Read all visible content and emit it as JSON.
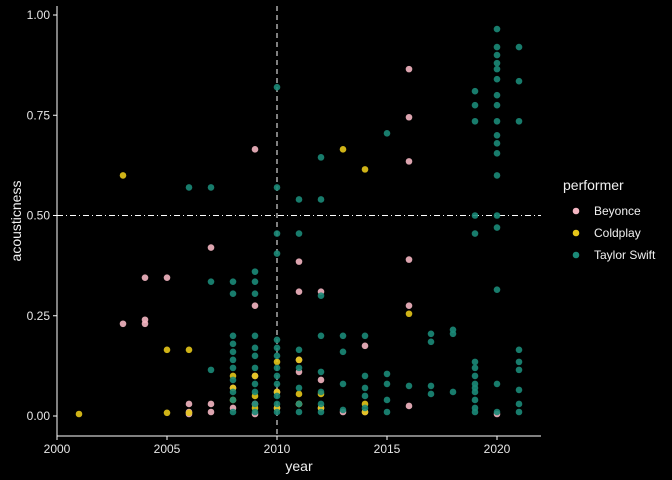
{
  "chart_data": {
    "type": "scatter",
    "xlabel": "year",
    "ylabel": "acousticness",
    "xlim": [
      2000,
      2022
    ],
    "ylim": [
      -0.04,
      1.0
    ],
    "x_ticks": [
      2000,
      2005,
      2010,
      2015,
      2020
    ],
    "y_ticks": [
      0.0,
      0.25,
      0.5,
      0.75,
      1.0
    ],
    "x_tick_labels": [
      "2000",
      "2005",
      "2010",
      "2015",
      "2020"
    ],
    "y_tick_labels": [
      "0.00",
      "0.25",
      "0.50",
      "0.75",
      "1.00"
    ],
    "grid": false,
    "reference_lines": [
      {
        "orientation": "vertical",
        "value": 2010,
        "style": "dashed"
      },
      {
        "orientation": "horizontal",
        "value": 0.5,
        "style": "dotdash"
      }
    ],
    "legend": {
      "title": "performer",
      "position": "right"
    },
    "series": [
      {
        "name": "Beyonce",
        "color": "#f4b6c2",
        "points": [
          [
            2003,
            0.23
          ],
          [
            2004,
            0.345
          ],
          [
            2004,
            0.24
          ],
          [
            2004,
            0.23
          ],
          [
            2005,
            0.345
          ],
          [
            2006,
            0.03
          ],
          [
            2006,
            0.01
          ],
          [
            2006,
            0.005
          ],
          [
            2007,
            0.42
          ],
          [
            2007,
            0.03
          ],
          [
            2007,
            0.01
          ],
          [
            2008,
            0.07
          ],
          [
            2008,
            0.02
          ],
          [
            2009,
            0.665
          ],
          [
            2009,
            0.275
          ],
          [
            2009,
            0.1
          ],
          [
            2009,
            0.03
          ],
          [
            2009,
            0.005
          ],
          [
            2010,
            0.06
          ],
          [
            2010,
            0.02
          ],
          [
            2011,
            0.385
          ],
          [
            2011,
            0.31
          ],
          [
            2011,
            0.14
          ],
          [
            2011,
            0.11
          ],
          [
            2011,
            0.03
          ],
          [
            2012,
            0.31
          ],
          [
            2012,
            0.09
          ],
          [
            2012,
            0.02
          ],
          [
            2013,
            0.01
          ],
          [
            2014,
            0.175
          ],
          [
            2014,
            0.01
          ],
          [
            2016,
            0.865
          ],
          [
            2016,
            0.745
          ],
          [
            2016,
            0.635
          ],
          [
            2016,
            0.39
          ],
          [
            2016,
            0.275
          ],
          [
            2016,
            0.025
          ],
          [
            2020,
            0.005
          ]
        ]
      },
      {
        "name": "Coldplay",
        "color": "#e6c619",
        "points": [
          [
            2001,
            0.005
          ],
          [
            2003,
            0.6
          ],
          [
            2005,
            0.165
          ],
          [
            2005,
            0.008
          ],
          [
            2006,
            0.165
          ],
          [
            2006,
            0.008
          ],
          [
            2008,
            0.1
          ],
          [
            2008,
            0.07
          ],
          [
            2008,
            0.04
          ],
          [
            2009,
            0.1
          ],
          [
            2009,
            0.05
          ],
          [
            2009,
            0.02
          ],
          [
            2010,
            0.135
          ],
          [
            2010,
            0.06
          ],
          [
            2010,
            0.02
          ],
          [
            2011,
            0.14
          ],
          [
            2011,
            0.055
          ],
          [
            2011,
            0.03
          ],
          [
            2012,
            0.055
          ],
          [
            2012,
            0.02
          ],
          [
            2013,
            0.665
          ],
          [
            2014,
            0.615
          ],
          [
            2014,
            0.03
          ],
          [
            2014,
            0.01
          ],
          [
            2016,
            0.255
          ]
        ]
      },
      {
        "name": "Taylor Swift",
        "color": "#1b8a78",
        "points": [
          [
            2006,
            0.57
          ],
          [
            2007,
            0.57
          ],
          [
            2007,
            0.335
          ],
          [
            2007,
            0.115
          ],
          [
            2008,
            0.335
          ],
          [
            2008,
            0.305
          ],
          [
            2008,
            0.2
          ],
          [
            2008,
            0.18
          ],
          [
            2008,
            0.16
          ],
          [
            2008,
            0.14
          ],
          [
            2008,
            0.12
          ],
          [
            2008,
            0.09
          ],
          [
            2008,
            0.06
          ],
          [
            2008,
            0.04
          ],
          [
            2008,
            0.01
          ],
          [
            2009,
            0.36
          ],
          [
            2009,
            0.335
          ],
          [
            2009,
            0.305
          ],
          [
            2009,
            0.2
          ],
          [
            2009,
            0.17
          ],
          [
            2009,
            0.15
          ],
          [
            2009,
            0.12
          ],
          [
            2009,
            0.08
          ],
          [
            2009,
            0.06
          ],
          [
            2009,
            0.03
          ],
          [
            2009,
            0.01
          ],
          [
            2010,
            0.82
          ],
          [
            2010,
            0.57
          ],
          [
            2010,
            0.455
          ],
          [
            2010,
            0.405
          ],
          [
            2010,
            0.19
          ],
          [
            2010,
            0.17
          ],
          [
            2010,
            0.15
          ],
          [
            2010,
            0.12
          ],
          [
            2010,
            0.1
          ],
          [
            2010,
            0.08
          ],
          [
            2010,
            0.05
          ],
          [
            2010,
            0.03
          ],
          [
            2010,
            0.01
          ],
          [
            2011,
            0.54
          ],
          [
            2011,
            0.455
          ],
          [
            2011,
            0.165
          ],
          [
            2011,
            0.12
          ],
          [
            2011,
            0.07
          ],
          [
            2011,
            0.03
          ],
          [
            2011,
            0.01
          ],
          [
            2012,
            0.645
          ],
          [
            2012,
            0.54
          ],
          [
            2012,
            0.3
          ],
          [
            2012,
            0.2
          ],
          [
            2012,
            0.11
          ],
          [
            2012,
            0.06
          ],
          [
            2012,
            0.03
          ],
          [
            2012,
            0.01
          ],
          [
            2013,
            0.2
          ],
          [
            2013,
            0.16
          ],
          [
            2013,
            0.08
          ],
          [
            2013,
            0.015
          ],
          [
            2014,
            0.2
          ],
          [
            2014,
            0.1
          ],
          [
            2014,
            0.07
          ],
          [
            2014,
            0.05
          ],
          [
            2014,
            0.02
          ],
          [
            2015,
            0.705
          ],
          [
            2015,
            0.105
          ],
          [
            2015,
            0.08
          ],
          [
            2015,
            0.04
          ],
          [
            2015,
            0.01
          ],
          [
            2016,
            0.075
          ],
          [
            2017,
            0.205
          ],
          [
            2017,
            0.185
          ],
          [
            2017,
            0.075
          ],
          [
            2017,
            0.055
          ],
          [
            2018,
            0.215
          ],
          [
            2018,
            0.205
          ],
          [
            2018,
            0.06
          ],
          [
            2019,
            0.81
          ],
          [
            2019,
            0.775
          ],
          [
            2019,
            0.735
          ],
          [
            2019,
            0.5
          ],
          [
            2019,
            0.455
          ],
          [
            2019,
            0.135
          ],
          [
            2019,
            0.12
          ],
          [
            2019,
            0.1
          ],
          [
            2019,
            0.08
          ],
          [
            2019,
            0.07
          ],
          [
            2019,
            0.06
          ],
          [
            2019,
            0.04
          ],
          [
            2019,
            0.02
          ],
          [
            2019,
            0.01
          ],
          [
            2020,
            0.965
          ],
          [
            2020,
            0.92
          ],
          [
            2020,
            0.9
          ],
          [
            2020,
            0.88
          ],
          [
            2020,
            0.865
          ],
          [
            2020,
            0.84
          ],
          [
            2020,
            0.8
          ],
          [
            2020,
            0.775
          ],
          [
            2020,
            0.735
          ],
          [
            2020,
            0.7
          ],
          [
            2020,
            0.68
          ],
          [
            2020,
            0.655
          ],
          [
            2020,
            0.6
          ],
          [
            2020,
            0.5
          ],
          [
            2020,
            0.47
          ],
          [
            2020,
            0.315
          ],
          [
            2020,
            0.08
          ],
          [
            2020,
            0.01
          ],
          [
            2021,
            0.92
          ],
          [
            2021,
            0.835
          ],
          [
            2021,
            0.735
          ],
          [
            2021,
            0.165
          ],
          [
            2021,
            0.135
          ],
          [
            2021,
            0.115
          ],
          [
            2021,
            0.065
          ],
          [
            2021,
            0.03
          ],
          [
            2021,
            0.01
          ]
        ]
      }
    ]
  }
}
